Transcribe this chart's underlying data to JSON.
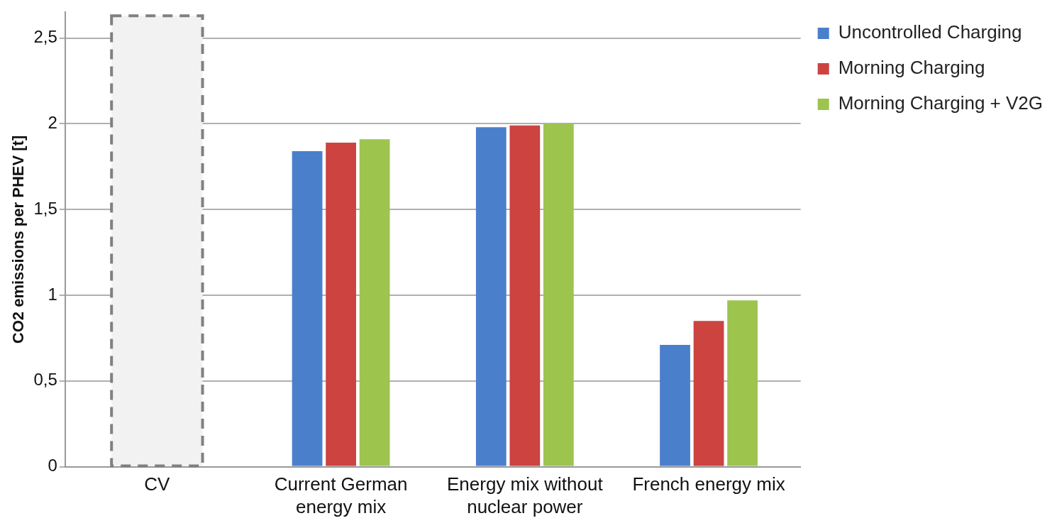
{
  "chart_data": {
    "type": "bar",
    "ylabel": "CO2 emissions per PHEV [t]",
    "categories": [
      "CV",
      "Current German energy mix",
      "Energy mix without nuclear power",
      "French energy mix"
    ],
    "series": [
      {
        "color": "#f2f2f2",
        "line_style": "dashed",
        "values": [
          2.63,
          null,
          null,
          null
        ]
      },
      {
        "name": "Uncontrolled Charging",
        "color": "#4a7fcc",
        "values": [
          null,
          1.84,
          1.98,
          0.71
        ]
      },
      {
        "name": "Morning Charging",
        "color": "#cc4340",
        "values": [
          null,
          1.89,
          1.99,
          0.85
        ]
      },
      {
        "name": "Morning Charging + V2G",
        "color": "#9dc44d",
        "values": [
          null,
          1.91,
          2.0,
          0.97
        ]
      }
    ],
    "ylim": [
      0,
      2.65
    ],
    "yticks": [
      {
        "value": 0,
        "label": "0"
      },
      {
        "value": 0.5,
        "label": "0,5"
      },
      {
        "value": 1,
        "label": "1"
      },
      {
        "value": 1.5,
        "label": "1,5"
      },
      {
        "value": 2,
        "label": "2"
      },
      {
        "value": 2.5,
        "label": "2,5"
      }
    ],
    "grid": "y",
    "legend": "top right"
  }
}
